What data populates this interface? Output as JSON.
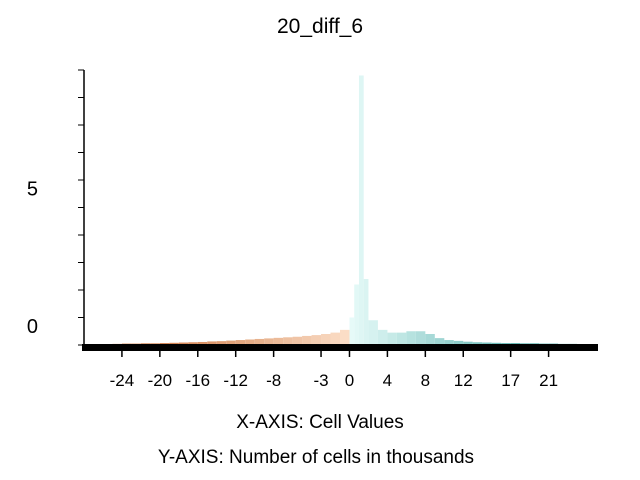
{
  "chart_data": {
    "type": "bar",
    "title": "20_diff_6",
    "xlabel": "X-AXIS: Cell Values",
    "ylabel": "Y-AXIS: Number of cells in thousands",
    "xlim": [
      -28,
      26
    ],
    "ylim": [
      0,
      10
    ],
    "x_ticks": [
      -24,
      -20,
      -16,
      -12,
      -8,
      -3,
      0,
      4,
      8,
      12,
      17,
      21
    ],
    "y_ticks": [
      0,
      5
    ],
    "grid": false,
    "legend": "none",
    "colors": {
      "negative_low": "#c0581a",
      "negative_high": "#fde2cc",
      "positive_low": "#e6faf8",
      "positive_high": "#18908c"
    },
    "bins": [
      {
        "x": -27,
        "y": 0.02
      },
      {
        "x": -26,
        "y": 0.03
      },
      {
        "x": -25,
        "y": 0.04
      },
      {
        "x": -24,
        "y": 0.05
      },
      {
        "x": -23,
        "y": 0.05
      },
      {
        "x": -22,
        "y": 0.06
      },
      {
        "x": -21,
        "y": 0.06
      },
      {
        "x": -20,
        "y": 0.07
      },
      {
        "x": -19,
        "y": 0.08
      },
      {
        "x": -18,
        "y": 0.09
      },
      {
        "x": -17,
        "y": 0.1
      },
      {
        "x": -16,
        "y": 0.11
      },
      {
        "x": -15,
        "y": 0.13
      },
      {
        "x": -14,
        "y": 0.14
      },
      {
        "x": -13,
        "y": 0.16
      },
      {
        "x": -12,
        "y": 0.18
      },
      {
        "x": -11,
        "y": 0.2
      },
      {
        "x": -10,
        "y": 0.22
      },
      {
        "x": -9,
        "y": 0.24
      },
      {
        "x": -8,
        "y": 0.26
      },
      {
        "x": -7,
        "y": 0.28
      },
      {
        "x": -6,
        "y": 0.3
      },
      {
        "x": -5,
        "y": 0.33
      },
      {
        "x": -4,
        "y": 0.36
      },
      {
        "x": -3,
        "y": 0.4
      },
      {
        "x": -2,
        "y": 0.45
      },
      {
        "x": -1,
        "y": 0.55
      },
      {
        "x": 0,
        "y": 1.0
      },
      {
        "x": 0.5,
        "y": 2.2
      },
      {
        "x": 1,
        "y": 9.8
      },
      {
        "x": 1.5,
        "y": 2.4
      },
      {
        "x": 2,
        "y": 0.9
      },
      {
        "x": 3,
        "y": 0.55
      },
      {
        "x": 4,
        "y": 0.45
      },
      {
        "x": 5,
        "y": 0.45
      },
      {
        "x": 6,
        "y": 0.5
      },
      {
        "x": 7,
        "y": 0.5
      },
      {
        "x": 8,
        "y": 0.4
      },
      {
        "x": 9,
        "y": 0.25
      },
      {
        "x": 10,
        "y": 0.18
      },
      {
        "x": 11,
        "y": 0.15
      },
      {
        "x": 12,
        "y": 0.12
      },
      {
        "x": 13,
        "y": 0.1
      },
      {
        "x": 14,
        "y": 0.09
      },
      {
        "x": 15,
        "y": 0.08
      },
      {
        "x": 16,
        "y": 0.07
      },
      {
        "x": 17,
        "y": 0.07
      },
      {
        "x": 18,
        "y": 0.06
      },
      {
        "x": 19,
        "y": 0.06
      },
      {
        "x": 20,
        "y": 0.05
      },
      {
        "x": 21,
        "y": 0.05
      },
      {
        "x": 22,
        "y": 0.04
      },
      {
        "x": 23,
        "y": 0.04
      },
      {
        "x": 24,
        "y": 0.03
      },
      {
        "x": 25,
        "y": 0.03
      }
    ]
  }
}
